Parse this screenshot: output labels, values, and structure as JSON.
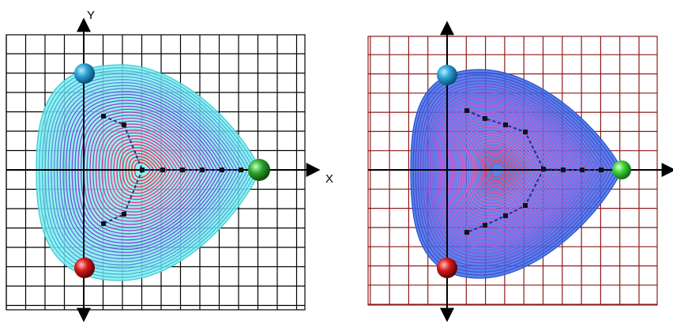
{
  "panels": [
    {
      "id": "left",
      "axis_labels": {
        "x": "X",
        "y": "Y"
      },
      "colors": {
        "grid": "#000000",
        "outer_fill": "#7ff0f0",
        "outer_stroke": "#3fc8d6",
        "mid": "#7b3fd8",
        "inner": "#e8358a",
        "core": "#ff2030",
        "control_polygon": "#1b2d8f"
      },
      "control_points": [
        [
          -1.0,
          1.2
        ],
        [
          -0.5,
          1.0
        ],
        [
          0.0,
          0.0
        ],
        [
          1.0,
          0.0
        ],
        [
          2.0,
          0.0
        ],
        [
          3.0,
          0.0
        ],
        [
          3.5,
          0.0
        ],
        [
          2.0,
          0.0
        ],
        [
          1.0,
          0.0
        ],
        [
          0.0,
          0.0
        ],
        [
          -0.5,
          -1.0
        ],
        [
          -1.0,
          -1.2
        ]
      ],
      "spheres": [
        {
          "name": "blue-sphere",
          "color": "#2aa4d6",
          "pos": [
            -1.2,
            2.8
          ]
        },
        {
          "name": "green-sphere",
          "color": "#2fa82f",
          "pos": [
            4.8,
            0.0
          ]
        },
        {
          "name": "red-sphere",
          "color": "#d81818",
          "pos": [
            -1.2,
            -2.8
          ]
        }
      ]
    },
    {
      "id": "right",
      "axis_labels": {
        "x": "",
        "y": ""
      },
      "colors": {
        "grid": "#8b1a1a",
        "outer_fill": "#3f6fe8",
        "outer_stroke": "#2a4fd0",
        "mid": "#c84fd8",
        "inner": "#f060c0",
        "core": "#ff3040",
        "control_polygon": "#1b2d8f"
      },
      "spheres": [
        {
          "name": "blue-sphere",
          "color": "#2aa4d6",
          "pos": [
            -1.2,
            2.8
          ]
        },
        {
          "name": "green-sphere",
          "color": "#3ad23a",
          "pos": [
            4.8,
            0.0
          ]
        },
        {
          "name": "red-sphere",
          "color": "#d81818",
          "pos": [
            -1.2,
            -2.8
          ]
        }
      ]
    }
  ]
}
